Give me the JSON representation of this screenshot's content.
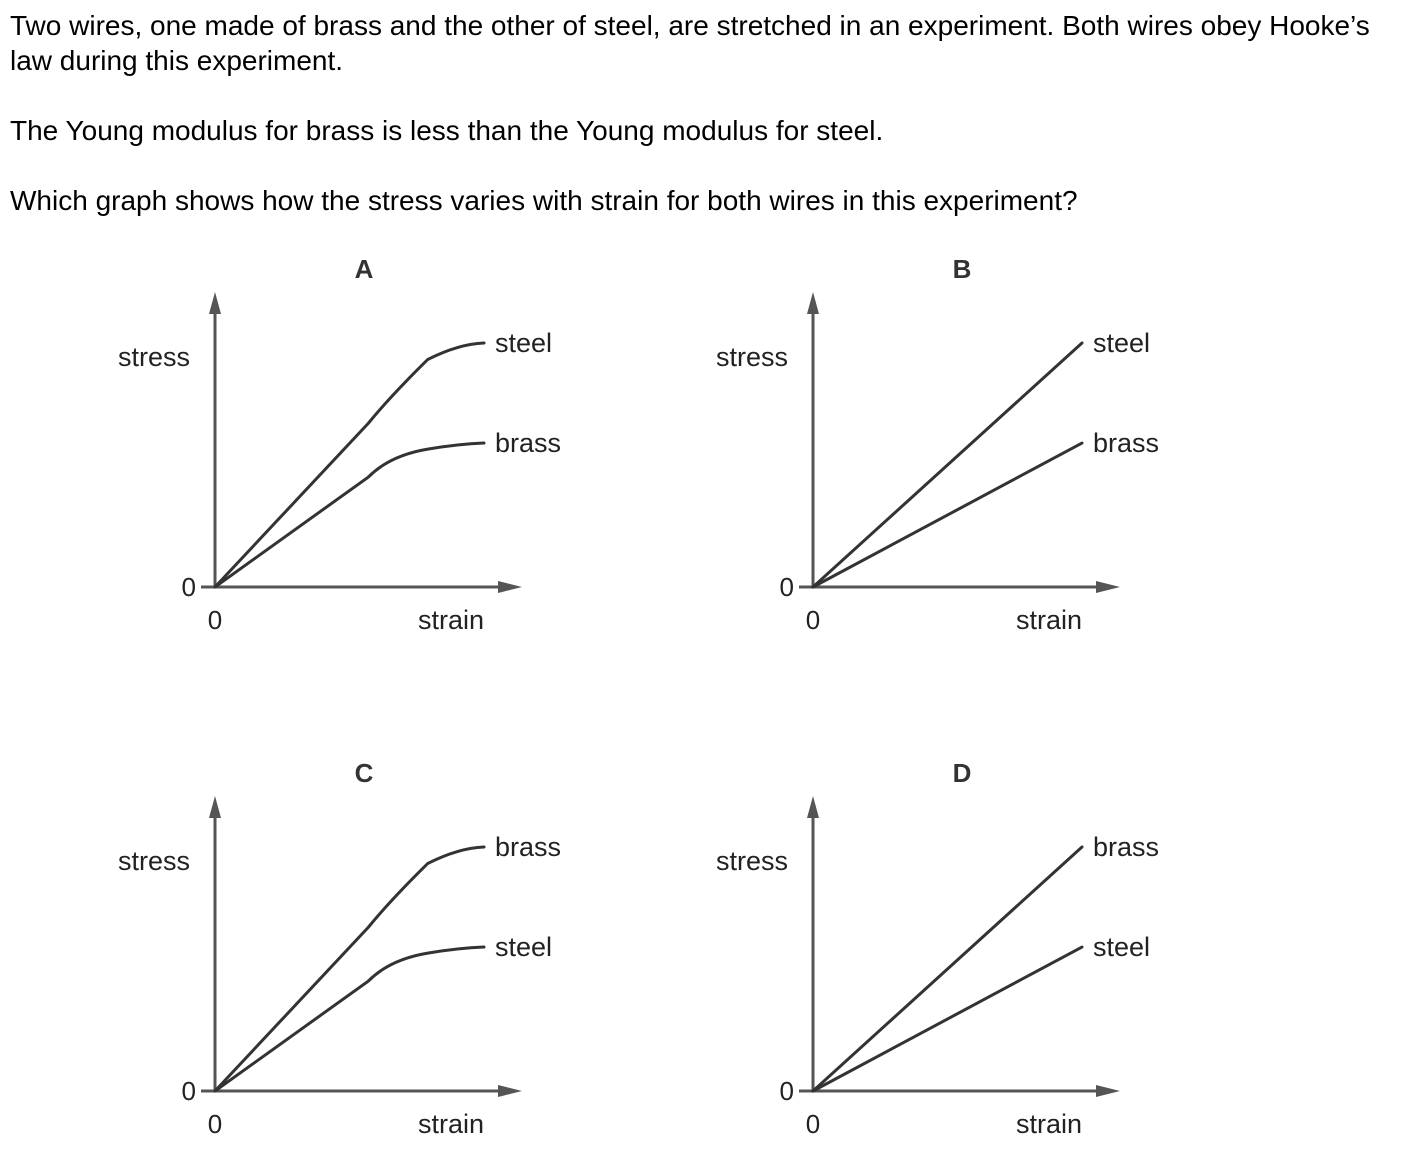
{
  "question": {
    "line1": "Two wires, one made of brass and the other of steel, are stretched in an experiment. Both wires obey Hooke’s law during this experiment.",
    "line2": "The Young modulus for brass is less than the Young modulus for steel.",
    "line3": "Which graph shows how the stress varies with strain for both wires in this experiment?"
  },
  "colors": {
    "axis": "#555555",
    "curve": "#333333",
    "text": "#222222"
  },
  "chart_data": [
    {
      "label": "A",
      "type": "line",
      "xlabel": "strain",
      "ylabel": "stress",
      "x_origin_label": "0",
      "y_origin_label": "0",
      "shape": "curved",
      "series": [
        {
          "name": "steel",
          "points": [
            [
              0,
              0
            ],
            [
              0.62,
              0.73
            ],
            [
              1.0,
              1.0
            ]
          ]
        },
        {
          "name": "brass",
          "points": [
            [
              0,
              0
            ],
            [
              0.62,
              0.49
            ],
            [
              1.0,
              0.59
            ]
          ]
        }
      ]
    },
    {
      "label": "B",
      "type": "line",
      "xlabel": "strain",
      "ylabel": "stress",
      "x_origin_label": "0",
      "y_origin_label": "0",
      "shape": "straight",
      "series": [
        {
          "name": "steel",
          "points": [
            [
              0,
              0
            ],
            [
              1.0,
              1.0
            ]
          ]
        },
        {
          "name": "brass",
          "points": [
            [
              0,
              0
            ],
            [
              1.0,
              0.59
            ]
          ]
        }
      ]
    },
    {
      "label": "C",
      "type": "line",
      "xlabel": "strain",
      "ylabel": "stress",
      "x_origin_label": "0",
      "y_origin_label": "0",
      "shape": "curved",
      "series": [
        {
          "name": "brass",
          "points": [
            [
              0,
              0
            ],
            [
              0.62,
              0.73
            ],
            [
              1.0,
              1.0
            ]
          ]
        },
        {
          "name": "steel",
          "points": [
            [
              0,
              0
            ],
            [
              0.62,
              0.49
            ],
            [
              1.0,
              0.59
            ]
          ]
        }
      ]
    },
    {
      "label": "D",
      "type": "line",
      "xlabel": "strain",
      "ylabel": "stress",
      "x_origin_label": "0",
      "y_origin_label": "0",
      "shape": "straight",
      "series": [
        {
          "name": "brass",
          "points": [
            [
              0,
              0
            ],
            [
              1.0,
              1.0
            ]
          ]
        },
        {
          "name": "steel",
          "points": [
            [
              0,
              0
            ],
            [
              1.0,
              0.59
            ]
          ]
        }
      ]
    }
  ]
}
